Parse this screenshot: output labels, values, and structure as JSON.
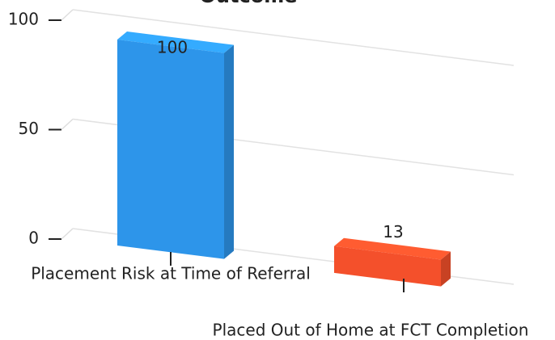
{
  "chart_data": {
    "type": "bar3d",
    "title": "Outcome",
    "categories": [
      "Placement Risk at Time of Referral",
      "Placed Out of Home at FCT Completion"
    ],
    "series": [
      {
        "name": null,
        "values": [
          100,
          13
        ],
        "colors": [
          "#2d95ea",
          "#f4502b"
        ]
      }
    ],
    "ylim": [
      0,
      100
    ],
    "yticks": [
      0,
      50,
      100
    ],
    "grid": true
  }
}
